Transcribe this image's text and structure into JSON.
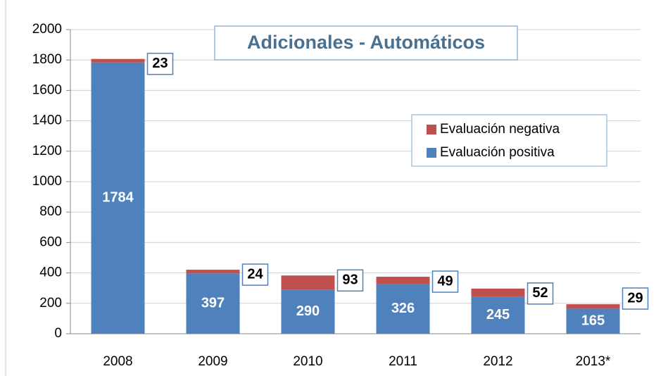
{
  "chart_data": {
    "type": "stacked_bar",
    "title": "Adicionales - Automáticos",
    "categories": [
      "2008",
      "2009",
      "2010",
      "2011",
      "2012",
      "2013*"
    ],
    "series": [
      {
        "name": "Evaluación positiva",
        "color": "#4f81bd",
        "values": [
          1784,
          397,
          290,
          326,
          245,
          165
        ]
      },
      {
        "name": "Evaluación negativa",
        "color": "#c0504d",
        "values": [
          23,
          24,
          93,
          49,
          52,
          29
        ]
      }
    ],
    "ylim": [
      0,
      2000
    ],
    "yticks": [
      0,
      200,
      400,
      600,
      800,
      1000,
      1200,
      1400,
      1600,
      1800,
      2000
    ],
    "grid": true,
    "legend": "upper right"
  }
}
